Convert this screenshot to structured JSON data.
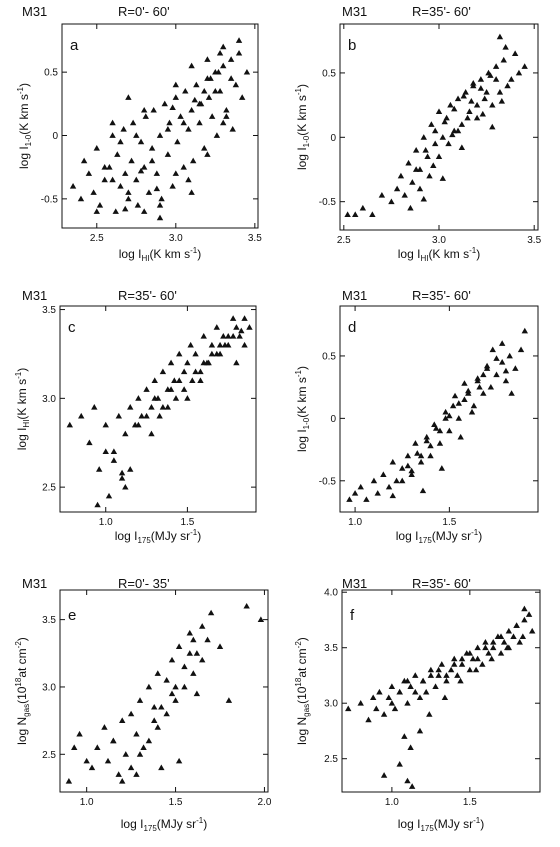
{
  "chart_data": [
    {
      "id": "a",
      "type": "scatter",
      "galaxy": "M31",
      "radius": "R=0'- 60'",
      "panel_label": "a",
      "xlabel_main": "log I",
      "xlabel_sub": "HI",
      "xlabel_unit": "(K km s",
      "xlabel_exp": "-1",
      "xlabel_end": ")",
      "ylabel_main": "log I",
      "ylabel_sub": "1-0",
      "ylabel_unit": "(K km s",
      "ylabel_exp": "-1",
      "ylabel_end": ")",
      "xlim": [
        2.28,
        3.52
      ],
      "ylim": [
        -0.73,
        0.88
      ],
      "xticks": [
        "2.5",
        "3.0",
        "3.5"
      ],
      "yticks": [
        "0.5",
        "0",
        "-0.5"
      ],
      "xtick_values": [
        2.5,
        3.0,
        3.5
      ],
      "ytick_values": [
        0.5,
        0,
        -0.5
      ],
      "marker": "triangle",
      "x": [
        2.35,
        2.4,
        2.42,
        2.45,
        2.48,
        2.5,
        2.52,
        2.55,
        2.58,
        2.6,
        2.62,
        2.63,
        2.65,
        2.67,
        2.68,
        2.7,
        2.72,
        2.73,
        2.75,
        2.76,
        2.78,
        2.8,
        2.81,
        2.83,
        2.85,
        2.86,
        2.88,
        2.9,
        2.91,
        2.93,
        2.95,
        2.96,
        2.98,
        3.0,
        3.01,
        3.03,
        3.05,
        3.06,
        3.08,
        3.1,
        3.11,
        3.13,
        3.15,
        3.16,
        3.18,
        3.2,
        3.21,
        3.23,
        3.25,
        3.26,
        3.28,
        3.3,
        3.32,
        3.35,
        3.38,
        3.4,
        3.42,
        3.45,
        2.5,
        2.55,
        2.6,
        2.65,
        2.7,
        2.75,
        2.8,
        2.85,
        2.9,
        2.95,
        3.0,
        3.05,
        3.1,
        3.15,
        3.2,
        3.25,
        3.3,
        3.35,
        3.4,
        2.6,
        2.7,
        2.8,
        2.9,
        3.0,
        3.1,
        3.2,
        3.3,
        3.22,
        3.27,
        3.18,
        3.12,
        3.32,
        3.36,
        3.28,
        3.08,
        2.98,
        2.88,
        2.78,
        2.68
      ],
      "y": [
        -0.4,
        -0.5,
        -0.2,
        -0.3,
        -0.45,
        -0.1,
        -0.55,
        -0.35,
        -0.25,
        0.0,
        -0.6,
        -0.15,
        -0.4,
        0.05,
        -0.3,
        -0.5,
        -0.2,
        0.1,
        -0.35,
        -0.55,
        -0.05,
        -0.25,
        0.15,
        -0.45,
        -0.1,
        0.2,
        -0.3,
        0.0,
        -0.5,
        0.25,
        -0.15,
        0.1,
        -0.4,
        0.3,
        -0.05,
        0.15,
        -0.25,
        0.35,
        0.05,
        0.2,
        -0.2,
        0.4,
        0.1,
        0.25,
        -0.1,
        0.45,
        0.3,
        0.15,
        0.5,
        0.0,
        0.35,
        0.55,
        0.2,
        0.6,
        0.4,
        0.65,
        0.3,
        0.5,
        -0.6,
        -0.25,
        -0.35,
        -0.05,
        -0.45,
        0.0,
        -0.6,
        -0.2,
        -0.55,
        0.05,
        -0.3,
        0.1,
        -0.45,
        0.25,
        -0.15,
        0.35,
        0.1,
        0.45,
        0.75,
        0.1,
        0.3,
        0.2,
        -0.65,
        0.4,
        0.55,
        0.6,
        0.7,
        0.45,
        0.5,
        0.35,
        0.28,
        0.15,
        0.05,
        0.65,
        -0.35,
        0.22,
        -0.42,
        -0.28,
        -0.58
      ]
    },
    {
      "id": "b",
      "type": "scatter",
      "galaxy": "M31",
      "radius": "R=35'- 60'",
      "panel_label": "b",
      "xlabel_main": "log I",
      "xlabel_sub": "HI",
      "xlabel_unit": "(K km s",
      "xlabel_exp": "-1",
      "xlabel_end": ")",
      "ylabel_main": "log I",
      "ylabel_sub": "1-0",
      "ylabel_unit": "(K km s",
      "ylabel_exp": "-1",
      "ylabel_end": ")",
      "xlim": [
        2.48,
        3.52
      ],
      "ylim": [
        -0.72,
        0.88
      ],
      "xticks": [
        "2.5",
        "3.0",
        "3.5"
      ],
      "yticks": [
        "0.5",
        "0",
        "-0.5"
      ],
      "xtick_values": [
        2.5,
        3.0,
        3.5
      ],
      "ytick_values": [
        0.5,
        0,
        -0.5
      ],
      "marker": "triangle",
      "x": [
        2.52,
        2.56,
        2.6,
        2.65,
        2.7,
        2.75,
        2.78,
        2.8,
        2.82,
        2.84,
        2.86,
        2.88,
        2.9,
        2.92,
        2.94,
        2.96,
        2.98,
        3.0,
        3.02,
        3.04,
        3.06,
        3.08,
        3.1,
        3.12,
        3.14,
        3.16,
        3.18,
        3.2,
        3.22,
        3.24,
        3.26,
        3.28,
        3.3,
        3.32,
        3.34,
        3.36,
        3.38,
        3.4,
        3.42,
        3.45,
        2.85,
        2.9,
        2.95,
        3.0,
        3.05,
        3.1,
        3.15,
        3.2,
        3.25,
        3.3,
        3.35,
        2.88,
        2.93,
        2.98,
        3.03,
        3.08,
        3.13,
        3.18,
        3.23,
        3.28,
        3.33,
        2.92,
        2.97,
        3.02,
        3.07,
        3.12,
        3.17,
        3.22,
        3.27,
        3.32
      ],
      "y": [
        -0.6,
        -0.6,
        -0.55,
        -0.6,
        -0.45,
        -0.5,
        -0.4,
        -0.3,
        -0.45,
        -0.2,
        -0.35,
        -0.1,
        -0.25,
        0.0,
        -0.15,
        0.1,
        -0.05,
        0.2,
        0.0,
        0.15,
        0.25,
        0.05,
        0.3,
        0.1,
        0.35,
        0.2,
        0.4,
        0.15,
        0.45,
        0.3,
        0.5,
        0.25,
        0.55,
        0.35,
        0.6,
        0.4,
        0.45,
        0.65,
        0.5,
        0.55,
        -0.55,
        -0.4,
        -0.3,
        -0.15,
        -0.05,
        0.05,
        0.15,
        0.25,
        0.35,
        0.45,
        0.7,
        -0.25,
        -0.1,
        0.05,
        0.12,
        0.22,
        0.32,
        0.42,
        0.18,
        0.08,
        0.28,
        -0.48,
        -0.22,
        -0.32,
        0.02,
        -0.08,
        0.28,
        0.38,
        0.48,
        0.78
      ]
    },
    {
      "id": "c",
      "type": "scatter",
      "galaxy": "M31",
      "radius": "R=35'- 60'",
      "panel_label": "c",
      "xlabel_main": "log I",
      "xlabel_sub": "175",
      "xlabel_unit": "(MJy sr",
      "xlabel_exp": "-1",
      "xlabel_end": ")",
      "ylabel_main": "log I",
      "ylabel_sub": "HI",
      "ylabel_unit": "(K km s",
      "ylabel_exp": "-1",
      "ylabel_end": ")",
      "xlim": [
        0.72,
        1.92
      ],
      "ylim": [
        2.36,
        3.52
      ],
      "xticks": [
        "1.0",
        "1.5"
      ],
      "yticks": [
        "3.5",
        "3.0",
        "2.5"
      ],
      "xtick_values": [
        1.0,
        1.5
      ],
      "ytick_values": [
        3.5,
        3.0,
        2.5
      ],
      "marker": "triangle",
      "x": [
        0.78,
        0.85,
        0.9,
        0.93,
        0.96,
        1.0,
        1.02,
        1.05,
        1.08,
        1.1,
        1.12,
        1.15,
        1.18,
        1.2,
        1.22,
        1.25,
        1.28,
        1.3,
        1.32,
        1.35,
        1.38,
        1.4,
        1.42,
        1.45,
        1.48,
        1.5,
        1.52,
        1.55,
        1.58,
        1.6,
        1.62,
        1.65,
        1.68,
        1.7,
        1.72,
        1.75,
        1.78,
        1.8,
        1.82,
        1.85,
        1.88,
        0.95,
        1.0,
        1.12,
        1.15,
        1.2,
        1.25,
        1.3,
        1.35,
        1.4,
        1.45,
        1.5,
        1.55,
        1.6,
        1.65,
        1.7,
        1.75,
        1.8,
        1.85,
        1.28,
        1.33,
        1.38,
        1.43,
        1.48,
        1.53,
        1.58,
        1.63,
        1.68,
        1.73,
        1.78,
        1.83,
        1.05,
        1.1
      ],
      "y": [
        2.85,
        2.9,
        2.75,
        2.95,
        2.6,
        2.85,
        2.45,
        2.7,
        2.9,
        2.55,
        2.8,
        2.95,
        2.85,
        3.0,
        2.9,
        3.05,
        2.95,
        3.1,
        3.0,
        3.15,
        3.05,
        3.2,
        3.1,
        3.25,
        3.15,
        3.2,
        3.3,
        3.25,
        3.1,
        3.35,
        3.2,
        3.3,
        3.4,
        3.25,
        3.35,
        3.3,
        3.45,
        3.4,
        3.35,
        3.45,
        3.4,
        2.4,
        2.7,
        2.5,
        2.6,
        2.85,
        2.9,
        3.0,
        2.95,
        3.05,
        3.1,
        3.0,
        3.15,
        3.2,
        3.25,
        3.3,
        3.35,
        3.2,
        3.3,
        2.8,
        2.9,
        2.95,
        3.0,
        3.05,
        3.1,
        3.15,
        3.2,
        3.25,
        3.3,
        3.35,
        3.38,
        2.65,
        2.58
      ]
    },
    {
      "id": "d",
      "type": "scatter",
      "galaxy": "M31",
      "radius": "R=35'- 60'",
      "panel_label": "d",
      "xlabel_main": "log I",
      "xlabel_sub": "175",
      "xlabel_unit": "(MJy sr",
      "xlabel_exp": "-1",
      "xlabel_end": ")",
      "ylabel_main": "log I",
      "ylabel_sub": "1-0",
      "ylabel_unit": "(K km s",
      "ylabel_exp": "-1",
      "ylabel_end": ")",
      "xlim": [
        0.92,
        1.97
      ],
      "ylim": [
        -0.75,
        0.9
      ],
      "xticks": [
        "1.0",
        "1.5"
      ],
      "yticks": [
        "0.5",
        "0",
        "-0.5"
      ],
      "xtick_values": [
        1.0,
        1.5
      ],
      "ytick_values": [
        0.5,
        0,
        -0.5
      ],
      "marker": "triangle",
      "x": [
        0.97,
        1.0,
        1.03,
        1.06,
        1.1,
        1.12,
        1.15,
        1.18,
        1.2,
        1.22,
        1.25,
        1.28,
        1.3,
        1.32,
        1.35,
        1.38,
        1.4,
        1.42,
        1.45,
        1.48,
        1.5,
        1.52,
        1.55,
        1.58,
        1.6,
        1.62,
        1.65,
        1.68,
        1.7,
        1.72,
        1.75,
        1.78,
        1.8,
        1.82,
        1.85,
        1.88,
        1.9,
        1.2,
        1.25,
        1.3,
        1.35,
        1.4,
        1.45,
        1.5,
        1.55,
        1.6,
        1.65,
        1.7,
        1.75,
        1.8,
        1.28,
        1.33,
        1.38,
        1.43,
        1.48,
        1.53,
        1.58,
        1.63,
        1.68,
        1.73,
        1.78,
        1.83,
        1.36,
        1.46,
        1.56,
        1.66
      ],
      "y": [
        -0.65,
        -0.6,
        -0.55,
        -0.65,
        -0.5,
        -0.6,
        -0.45,
        -0.55,
        -0.35,
        -0.5,
        -0.4,
        -0.3,
        -0.45,
        -0.2,
        -0.35,
        -0.15,
        -0.3,
        -0.05,
        -0.2,
        0.0,
        -0.1,
        0.1,
        0.0,
        0.15,
        0.2,
        0.05,
        0.3,
        0.2,
        0.4,
        0.25,
        0.35,
        0.45,
        0.3,
        0.5,
        0.4,
        0.55,
        0.7,
        -0.62,
        -0.5,
        -0.42,
        -0.3,
        -0.22,
        -0.1,
        0.02,
        0.12,
        0.22,
        0.32,
        0.42,
        0.48,
        0.38,
        -0.38,
        -0.28,
        -0.18,
        -0.08,
        0.05,
        0.18,
        0.28,
        0.1,
        0.35,
        0.55,
        0.6,
        0.2,
        -0.58,
        -0.4,
        -0.15,
        0.25
      ]
    },
    {
      "id": "e",
      "type": "scatter",
      "galaxy": "M31",
      "radius": "R=0'- 35'",
      "panel_label": "e",
      "xlabel_main": "log I",
      "xlabel_sub": "175",
      "xlabel_unit": "(MJy sr",
      "xlabel_exp": "-1",
      "xlabel_end": ")",
      "ylabel_main": "log N",
      "ylabel_sub": "gas",
      "ylabel_unit": "(10",
      "ylabel_exp": "18",
      "ylabel_end": "at cm",
      "ylabel_exp2": "-2",
      "ylabel_end2": ")",
      "xlim": [
        0.85,
        2.02
      ],
      "ylim": [
        2.22,
        3.72
      ],
      "xticks": [
        "1.0",
        "1.5",
        "2.0"
      ],
      "yticks": [
        "3.5",
        "3.0",
        "2.5"
      ],
      "xtick_values": [
        1.0,
        1.5,
        2.0
      ],
      "ytick_values": [
        3.5,
        3.0,
        2.5
      ],
      "marker": "triangle",
      "x": [
        0.9,
        0.93,
        0.96,
        1.0,
        1.03,
        1.06,
        1.1,
        1.12,
        1.15,
        1.18,
        1.2,
        1.22,
        1.25,
        1.28,
        1.3,
        1.32,
        1.35,
        1.38,
        1.4,
        1.42,
        1.45,
        1.48,
        1.5,
        1.52,
        1.55,
        1.58,
        1.6,
        1.62,
        1.65,
        1.7,
        1.75,
        1.8,
        1.9,
        1.98,
        1.2,
        1.25,
        1.3,
        1.35,
        1.4,
        1.45,
        1.5,
        1.55,
        1.6,
        1.65,
        1.15,
        1.28,
        1.38,
        1.48,
        1.58,
        1.68,
        1.42,
        1.52,
        1.62
      ],
      "y": [
        2.3,
        2.55,
        2.65,
        2.45,
        2.4,
        2.55,
        2.7,
        2.45,
        2.6,
        2.35,
        2.75,
        2.5,
        2.8,
        2.65,
        2.9,
        2.55,
        3.0,
        2.75,
        3.1,
        2.85,
        3.05,
        3.2,
        3.0,
        3.3,
        3.15,
        3.4,
        3.1,
        3.25,
        3.45,
        3.55,
        3.3,
        2.9,
        3.6,
        3.5,
        2.3,
        2.4,
        2.5,
        2.6,
        2.7,
        2.8,
        2.9,
        3.0,
        3.35,
        3.2,
        2.6,
        2.35,
        2.85,
        2.95,
        3.25,
        3.35,
        2.4,
        2.45,
        2.95
      ]
    },
    {
      "id": "f",
      "type": "scatter",
      "galaxy": "M31",
      "radius": "R=35'- 60'",
      "panel_label": "f",
      "xlabel_main": "log I",
      "xlabel_sub": "175",
      "xlabel_unit": "(MJy sr",
      "xlabel_exp": "-1",
      "xlabel_end": ")",
      "ylabel_main": "log N",
      "ylabel_sub": "gas",
      "ylabel_unit": "(10",
      "ylabel_exp": "18",
      "ylabel_end": "at cm",
      "ylabel_exp2": "-2",
      "ylabel_end2": ")",
      "xlim": [
        0.68,
        1.95
      ],
      "ylim": [
        2.2,
        4.02
      ],
      "xticks": [
        "1.0",
        "1.5"
      ],
      "yticks": [
        "4.0",
        "3.5",
        "3.0",
        "2.5"
      ],
      "xtick_values": [
        1.0,
        1.5
      ],
      "ytick_values": [
        4.0,
        3.5,
        3.0,
        2.5
      ],
      "marker": "triangle",
      "x": [
        0.72,
        0.8,
        0.85,
        0.88,
        0.9,
        0.92,
        0.95,
        0.98,
        1.0,
        1.02,
        1.05,
        1.08,
        1.1,
        1.12,
        1.15,
        1.18,
        1.2,
        1.22,
        1.25,
        1.28,
        1.3,
        1.32,
        1.35,
        1.38,
        1.4,
        1.42,
        1.45,
        1.48,
        1.5,
        1.52,
        1.55,
        1.58,
        1.6,
        1.62,
        1.65,
        1.68,
        1.7,
        1.72,
        1.75,
        1.78,
        1.8,
        1.82,
        1.85,
        1.88,
        1.9,
        1.0,
        1.05,
        1.1,
        1.15,
        1.2,
        1.25,
        1.3,
        1.35,
        1.4,
        1.45,
        1.5,
        1.55,
        1.6,
        1.65,
        1.7,
        1.75,
        1.8,
        1.85,
        1.08,
        1.12,
        1.18,
        1.24,
        1.34,
        1.44,
        1.54,
        1.64,
        1.74,
        1.84,
        0.95,
        1.05,
        1.1,
        1.13
      ],
      "y": [
        2.95,
        3.0,
        2.85,
        3.05,
        2.95,
        3.1,
        2.9,
        3.05,
        3.15,
        2.95,
        3.1,
        3.2,
        3.0,
        3.15,
        3.25,
        3.05,
        3.2,
        3.1,
        3.3,
        3.15,
        3.25,
        3.35,
        3.2,
        3.3,
        3.4,
        3.25,
        3.35,
        3.45,
        3.3,
        3.4,
        3.5,
        3.35,
        3.55,
        3.45,
        3.5,
        3.6,
        3.45,
        3.55,
        3.65,
        3.6,
        3.7,
        3.55,
        3.75,
        3.8,
        3.65,
        3.0,
        3.1,
        3.2,
        3.1,
        3.2,
        3.25,
        3.3,
        3.25,
        3.35,
        3.4,
        3.45,
        3.4,
        3.5,
        3.55,
        3.6,
        3.5,
        3.7,
        3.85,
        2.7,
        2.6,
        2.75,
        2.9,
        3.05,
        3.2,
        3.3,
        3.4,
        3.5,
        3.6,
        2.35,
        2.45,
        2.3,
        2.25
      ]
    }
  ]
}
